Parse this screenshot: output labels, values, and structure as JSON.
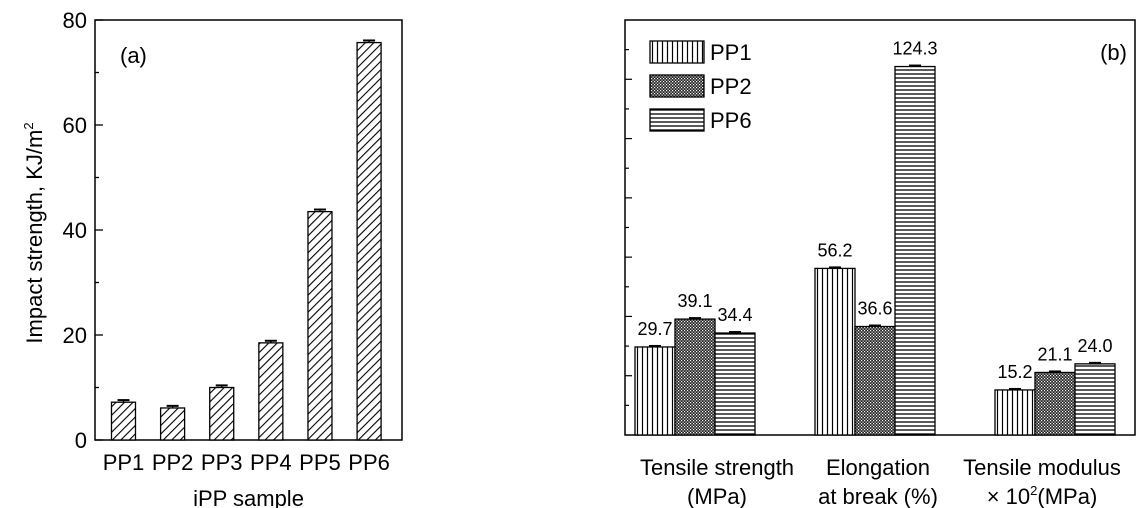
{
  "chart_data": [
    {
      "type": "bar",
      "panel_label": "(a)",
      "xlabel": "iPP sample",
      "ylabel": "Impact strength, KJ/m",
      "ylabel_sup": "2",
      "ylim": [
        0,
        80
      ],
      "yticks": [
        "0",
        "20",
        "40",
        "60",
        "80"
      ],
      "categories": [
        "PP1",
        "PP2",
        "PP3",
        "PP4",
        "PP5",
        "PP6"
      ],
      "values": [
        7.2,
        6.1,
        10.0,
        18.5,
        43.5,
        75.7
      ],
      "errors": [
        0.4,
        0.4,
        0.4,
        0.4,
        0.4,
        0.4
      ],
      "pattern": "diagonal-hatch",
      "grid": false
    },
    {
      "type": "bar",
      "panel_label": "(b)",
      "legend_position": "top-left",
      "groups": [
        {
          "line1": "Tensile strength",
          "line2": "(MPa)",
          "line2_sup": ""
        },
        {
          "line1": "Elongation",
          "line2": "at break (%)",
          "line2_sup": ""
        },
        {
          "line1": "Tensile modulus",
          "line2": "× 10",
          "line2_sup": "2",
          "line2_tail": "(MPa)"
        }
      ],
      "series": [
        {
          "name": "PP1",
          "pattern": "vertical-lines",
          "labels": [
            "29.7",
            "56.2",
            "15.2"
          ],
          "values": [
            29.7,
            56.2,
            15.2
          ]
        },
        {
          "name": "PP2",
          "pattern": "dense-dots",
          "labels": [
            "39.1",
            "36.6",
            "21.1"
          ],
          "values": [
            39.1,
            36.6,
            21.1
          ]
        },
        {
          "name": "PP6",
          "pattern": "horizontal-lines",
          "labels": [
            "34.4",
            "124.3",
            "24.0"
          ],
          "values": [
            34.4,
            124.3,
            24.0
          ]
        }
      ],
      "y_axis_tick_labels": "none",
      "grid": false
    }
  ]
}
